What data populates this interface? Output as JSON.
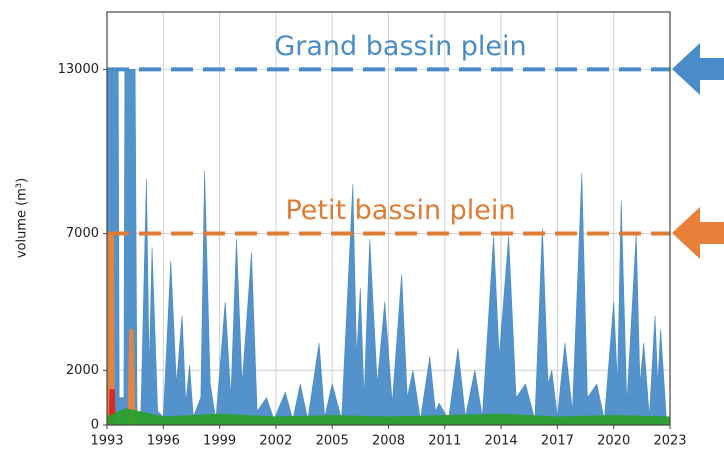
{
  "chart_data": {
    "type": "area",
    "ylabel": "volume (m³)",
    "xlim": [
      1993,
      2023
    ],
    "xticks": [
      1993,
      1996,
      1999,
      2002,
      2005,
      2008,
      2011,
      2014,
      2017,
      2020,
      2023
    ],
    "ylim": [
      0,
      15100
    ],
    "yticks": [
      0,
      2000,
      7000,
      13000
    ],
    "grid": true,
    "annotations": [
      {
        "text": "Grand bassin plein",
        "y": 13000,
        "color": "#4a8cc7"
      },
      {
        "text": "Petit bassin plein",
        "y": 7000,
        "color": "#e07b33"
      }
    ],
    "series": [
      {
        "color": "#4a8cc7",
        "x": [
          1993,
          1993.6,
          1993.65,
          1993.9,
          1993.95,
          1994.5,
          1994.6,
          1994.8,
          1995.1,
          1995.25,
          1995.4,
          1995.7,
          1996.0,
          1996.4,
          1996.7,
          1997.0,
          1997.2,
          1997.4,
          1997.6,
          1998.0,
          1998.2,
          1998.5,
          1998.8,
          1999.3,
          1999.6,
          1999.9,
          2000.2,
          2000.7,
          2001.0,
          2001.5,
          2001.9,
          2002.5,
          2002.9,
          2003.3,
          2003.7,
          2004.3,
          2004.6,
          2005.0,
          2005.5,
          2006.1,
          2006.3,
          2006.5,
          2006.7,
          2007.0,
          2007.4,
          2007.8,
          2008.2,
          2008.7,
          2009.0,
          2009.3,
          2009.7,
          2010.2,
          2010.5,
          2010.7,
          2011.2,
          2011.7,
          2012.1,
          2012.6,
          2013.0,
          2013.6,
          2013.9,
          2014.4,
          2014.8,
          2015.3,
          2015.8,
          2016.2,
          2016.5,
          2016.7,
          2017.0,
          2017.4,
          2017.8,
          2018.3,
          2018.6,
          2019.1,
          2019.5,
          2020.0,
          2020.2,
          2020.4,
          2020.7,
          2021.2,
          2021.4,
          2021.6,
          2021.9,
          2022.2,
          2022.35,
          2022.5,
          2022.8,
          2023
        ],
        "values": [
          13000,
          13000,
          1000,
          1000,
          13000,
          13000,
          500,
          300,
          9000,
          2000,
          6500,
          500,
          300,
          6000,
          1500,
          4000,
          800,
          2200,
          300,
          1000,
          9300,
          1500,
          200,
          4500,
          1000,
          6800,
          1500,
          6300,
          500,
          1000,
          200,
          1200,
          200,
          1500,
          200,
          3000,
          300,
          1500,
          200,
          8800,
          2500,
          5000,
          1000,
          6800,
          1500,
          4500,
          800,
          5500,
          1000,
          2000,
          200,
          2500,
          500,
          800,
          200,
          2800,
          300,
          2000,
          300,
          6900,
          2500,
          6900,
          1000,
          1500,
          200,
          7200,
          1500,
          2000,
          300,
          3000,
          500,
          9200,
          1000,
          1500,
          200,
          4500,
          1500,
          8200,
          800,
          7000,
          1500,
          3000,
          300,
          4000,
          1500,
          3500,
          300,
          0
        ]
      },
      {
        "color": "#e8853d",
        "x": [
          1993,
          1993.35,
          1993.4,
          1994.1,
          1994.2,
          1994.4,
          1994.5
        ],
        "values": [
          7000,
          7000,
          0,
          0,
          3500,
          3500,
          0
        ]
      },
      {
        "color": "#d62728",
        "x": [
          1993.1,
          1993.15,
          1993.4,
          1993.45
        ],
        "values": [
          0,
          1300,
          1300,
          0
        ]
      },
      {
        "color": "#2ca02c",
        "x": [
          1993,
          1994,
          1996,
          1999,
          2002,
          2005,
          2008,
          2011,
          2014,
          2017,
          2020,
          2023
        ],
        "values": [
          300,
          600,
          300,
          400,
          300,
          350,
          300,
          350,
          400,
          300,
          350,
          300
        ]
      }
    ]
  }
}
